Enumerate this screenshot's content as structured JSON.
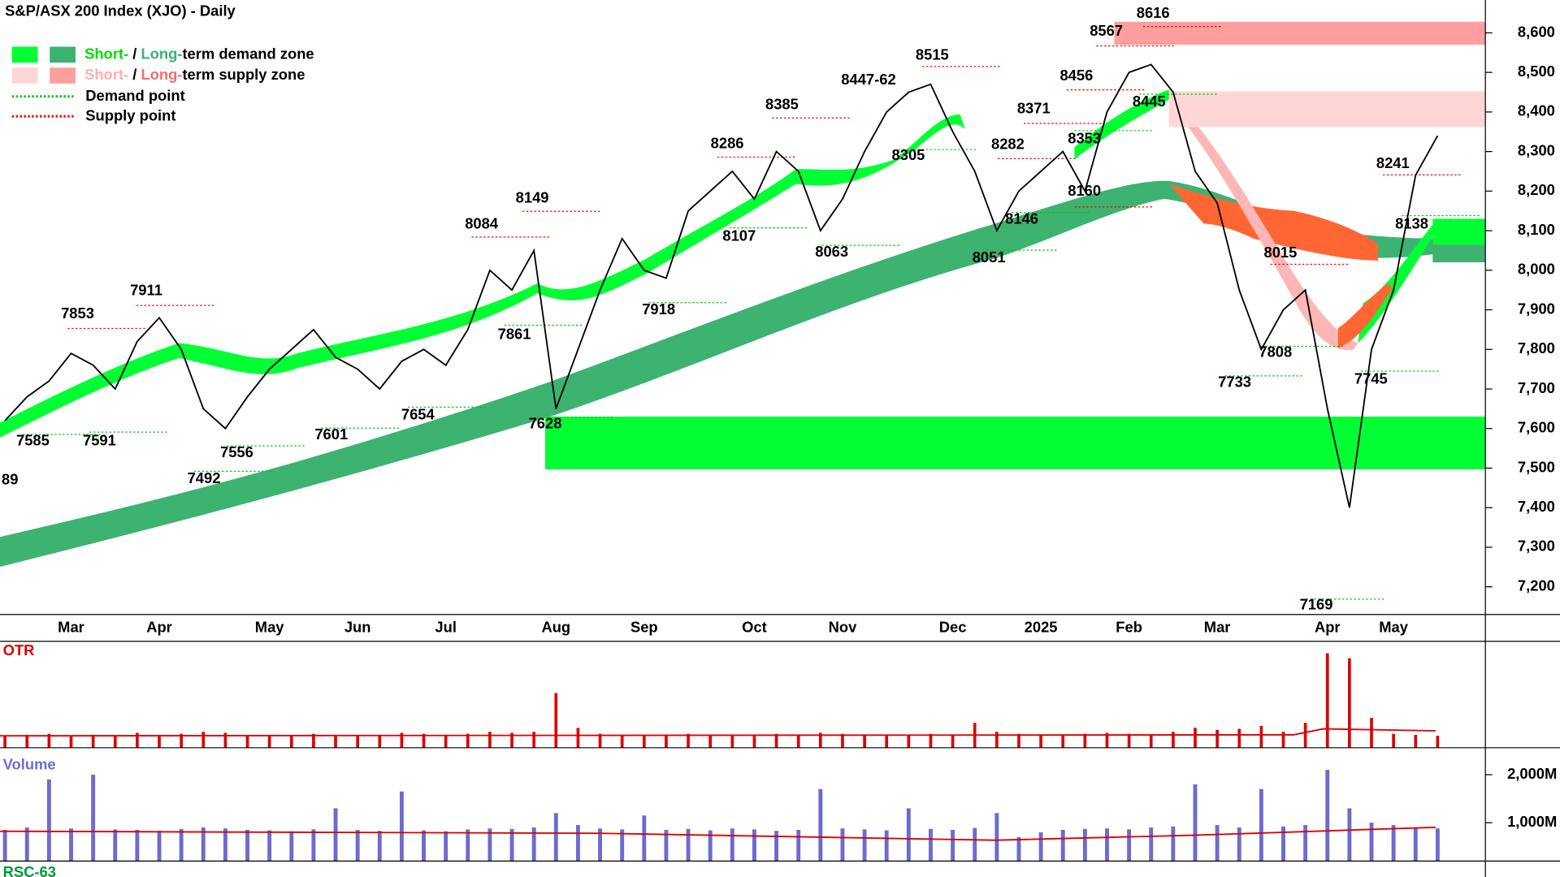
{
  "chart_data": [
    {
      "type": "line",
      "title": "S&P/ASX 200 Index (XJO) - Daily",
      "legend": [
        [
          "Short-",
          " / ",
          "Long-",
          "term demand zone"
        ],
        [
          "Short-",
          " / ",
          "Long-",
          "term supply zone"
        ],
        [
          "Demand point"
        ],
        [
          "Supply point"
        ]
      ],
      "categories": [
        null,
        null,
        null,
        "Mar",
        null,
        null,
        null,
        "Apr",
        null,
        null,
        null,
        null,
        "May",
        null,
        null,
        null,
        "Jun",
        null,
        null,
        null,
        "Jul",
        null,
        null,
        null,
        null,
        "Aug",
        null,
        null,
        null,
        "Sep",
        null,
        null,
        null,
        null,
        "Oct",
        null,
        null,
        null,
        "Nov",
        null,
        null,
        null,
        null,
        "Dec",
        null,
        null,
        null,
        "2025",
        null,
        null,
        null,
        "Feb",
        null,
        null,
        null,
        "Mar",
        null,
        null,
        null,
        null,
        "Apr",
        null,
        null,
        "May",
        null,
        null
      ],
      "series": [
        {
          "color": "#000000",
          "values": [
            7620,
            7680,
            7720,
            7790,
            7760,
            7700,
            7820,
            7880,
            7800,
            7650,
            7600,
            7680,
            7750,
            7800,
            7850,
            7780,
            7750,
            7700,
            7770,
            7800,
            7760,
            7850,
            8000,
            7950,
            8050,
            7650,
            7800,
            7950,
            8080,
            8000,
            7980,
            8150,
            8200,
            8250,
            8180,
            8300,
            8250,
            8100,
            8180,
            8300,
            8400,
            8450,
            8470,
            8350,
            8250,
            8100,
            8200,
            8250,
            8300,
            8200,
            8400,
            8500,
            8520,
            8450,
            8250,
            8170,
            7950,
            7800,
            7900,
            7950,
            7650,
            7400,
            7800,
            7950,
            8240,
            8340
          ]
        }
      ],
      "ylim": [
        7130,
        8683
      ],
      "yticks": [
        {
          "value": 7200,
          "label": "7,200"
        },
        {
          "value": 7300,
          "label": "7,300"
        },
        {
          "value": 7400,
          "label": "7,400"
        },
        {
          "value": 7500,
          "label": "7,500"
        },
        {
          "value": 7600,
          "label": "7,600"
        },
        {
          "value": 7700,
          "label": "7,700"
        },
        {
          "value": 7800,
          "label": "7,800"
        },
        {
          "value": 7900,
          "label": "7,900"
        },
        {
          "value": 8000,
          "label": "8,000"
        },
        {
          "value": 8100,
          "label": "8,100"
        },
        {
          "value": 8200,
          "label": "8,200"
        },
        {
          "value": 8300,
          "label": "8,300"
        },
        {
          "value": 8400,
          "label": "8,400"
        },
        {
          "value": 8500,
          "label": "8,500"
        },
        {
          "value": 8600,
          "label": "8,600"
        }
      ],
      "zones": [
        {
          "color": "#00ff33",
          "range": [
            7497,
            7630
          ]
        },
        {
          "color": "#00ff33",
          "range": [
            8065,
            8130
          ]
        },
        {
          "color": "#3cb371",
          "range": [
            8020,
            8065
          ]
        },
        {
          "color": "#ffd6d6",
          "range": [
            8362,
            8452
          ]
        },
        {
          "color": "#ff9e9e",
          "range": [
            8570,
            8628
          ]
        }
      ],
      "annotations": [
        8616,
        8567,
        8445,
        8456,
        8353,
        8371,
        8282,
        8160,
        8146,
        8051,
        8515,
        "8447-62",
        8305,
        8385,
        8063,
        8286,
        8107,
        7918,
        8149,
        8084,
        7628,
        7861,
        7654,
        7601,
        7911,
        7853,
        7556,
        7492,
        7591,
        7585,
        "89",
        8015,
        7808,
        7733,
        7169,
        7745,
        8241,
        8138
      ]
    },
    {
      "type": "bar",
      "title": "OTR",
      "color": "#dd0000",
      "ylim": [
        0,
        10
      ],
      "values": [
        1.2,
        1.3,
        1.4,
        1.2,
        1.3,
        1.2,
        1.5,
        1.3,
        1.4,
        1.6,
        1.5,
        1.2,
        1.3,
        1.2,
        1.4,
        1.3,
        1.2,
        1.3,
        1.5,
        1.4,
        1.3,
        1.4,
        1.6,
        1.5,
        1.6,
        5.5,
        2.0,
        1.4,
        1.3,
        1.2,
        1.3,
        1.4,
        1.2,
        1.3,
        1.2,
        1.4,
        1.3,
        1.5,
        1.4,
        1.3,
        1.2,
        1.3,
        1.4,
        1.3,
        2.5,
        1.6,
        1.4,
        1.3,
        1.2,
        1.4,
        1.5,
        1.4,
        1.3,
        1.6,
        2.0,
        1.8,
        1.9,
        2.2,
        1.6,
        2.5,
        9.5,
        9.0,
        3.0,
        1.4,
        1.3,
        1.2
      ]
    },
    {
      "type": "bar",
      "title": "Volume",
      "color": "#6b6bd0",
      "ylim": [
        200,
        2437
      ],
      "yticks": [
        {
          "value": 1000,
          "label": "1,000M"
        },
        {
          "value": 2000,
          "label": "2,000M"
        }
      ],
      "values": [
        850,
        900,
        1900,
        880,
        2000,
        860,
        850,
        830,
        870,
        900,
        880,
        850,
        840,
        820,
        860,
        1300,
        850,
        830,
        1650,
        840,
        820,
        860,
        880,
        870,
        900,
        1200,
        950,
        880,
        860,
        1150,
        850,
        870,
        840,
        880,
        860,
        830,
        850,
        1700,
        880,
        860,
        840,
        1300,
        870,
        850,
        890,
        1200,
        700,
        800,
        850,
        870,
        880,
        860,
        900,
        920,
        1800,
        950,
        900,
        1700,
        920,
        950,
        2100,
        1300,
        1000,
        950,
        900,
        880
      ]
    },
    {
      "type": "line",
      "title": "RSC-63"
    }
  ]
}
